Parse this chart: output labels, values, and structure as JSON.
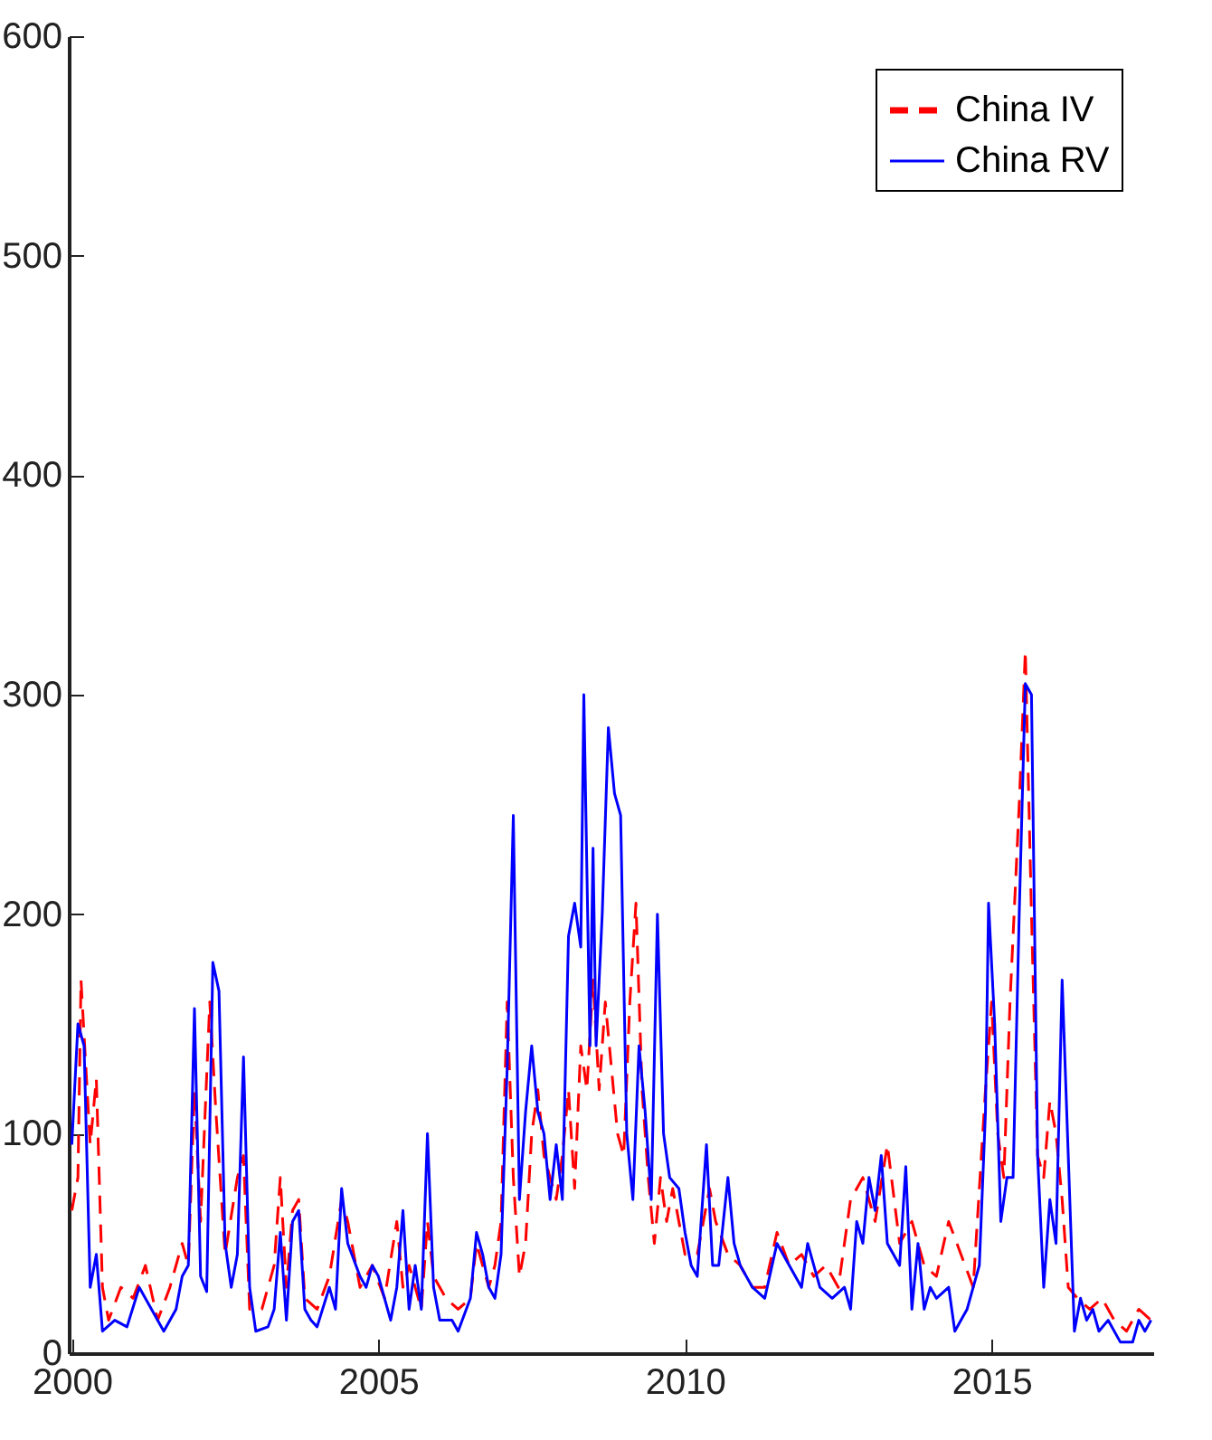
{
  "chart_data": {
    "type": "line",
    "xlim": [
      1999.95,
      2017.65
    ],
    "xticks": [
      2000,
      2005,
      2010,
      2015
    ],
    "ylim": [
      0,
      600
    ],
    "yticks": [
      0,
      100,
      200,
      300,
      400,
      500,
      600
    ],
    "grid": false,
    "legend": "top right",
    "series": [
      {
        "name": "China IV",
        "color": "#ff0000",
        "line_style": "dashed",
        "x": [
          2000.0,
          2000.1,
          2000.15,
          2000.25,
          2000.3,
          2000.4,
          2000.5,
          2000.6,
          2000.8,
          2001.0,
          2001.2,
          2001.4,
          2001.6,
          2001.8,
          2001.9,
          2002.0,
          2002.1,
          2002.25,
          2002.35,
          2002.5,
          2002.7,
          2002.8,
          2002.9,
          2003.1,
          2003.3,
          2003.4,
          2003.5,
          2003.6,
          2003.7,
          2003.8,
          2004.0,
          2004.2,
          2004.4,
          2004.5,
          2004.7,
          2004.9,
          2005.1,
          2005.3,
          2005.4,
          2005.5,
          2005.7,
          2005.8,
          2005.9,
          2006.1,
          2006.3,
          2006.5,
          2006.6,
          2006.8,
          2006.9,
          2007.0,
          2007.1,
          2007.2,
          2007.3,
          2007.4,
          2007.5,
          2007.6,
          2007.7,
          2007.8,
          2007.9,
          2008.0,
          2008.1,
          2008.2,
          2008.3,
          2008.4,
          2008.5,
          2008.6,
          2008.7,
          2008.8,
          2008.9,
          2009.0,
          2009.1,
          2009.2,
          2009.3,
          2009.4,
          2009.5,
          2009.6,
          2009.7,
          2009.8,
          2009.9,
          2010.0,
          2010.2,
          2010.4,
          2010.5,
          2010.7,
          2010.9,
          2011.1,
          2011.3,
          2011.5,
          2011.7,
          2011.9,
          2012.1,
          2012.3,
          2012.5,
          2012.7,
          2012.9,
          2013.1,
          2013.3,
          2013.5,
          2013.7,
          2013.9,
          2014.1,
          2014.3,
          2014.5,
          2014.7,
          2014.9,
          2015.0,
          2015.1,
          2015.2,
          2015.3,
          2015.45,
          2015.55,
          2015.65,
          2015.75,
          2015.85,
          2015.95,
          2016.05,
          2016.15,
          2016.25,
          2016.4,
          2016.6,
          2016.8,
          2017.0,
          2017.2,
          2017.4,
          2017.6
        ],
        "values": [
          65,
          80,
          170,
          120,
          95,
          125,
          30,
          15,
          30,
          25,
          40,
          15,
          30,
          50,
          40,
          120,
          60,
          160,
          110,
          45,
          80,
          90,
          20,
          20,
          40,
          80,
          30,
          65,
          70,
          25,
          20,
          35,
          70,
          60,
          30,
          40,
          25,
          60,
          30,
          40,
          20,
          60,
          35,
          25,
          20,
          25,
          50,
          30,
          40,
          60,
          160,
          80,
          35,
          50,
          100,
          120,
          90,
          80,
          70,
          90,
          120,
          75,
          140,
          120,
          170,
          120,
          160,
          130,
          100,
          90,
          160,
          205,
          120,
          80,
          50,
          80,
          60,
          75,
          60,
          45,
          45,
          75,
          60,
          45,
          40,
          30,
          30,
          55,
          40,
          45,
          35,
          40,
          30,
          70,
          80,
          60,
          95,
          50,
          60,
          40,
          35,
          60,
          45,
          30,
          120,
          160,
          100,
          80,
          160,
          250,
          320,
          200,
          90,
          80,
          115,
          100,
          70,
          30,
          25,
          20,
          25,
          15,
          10,
          20,
          15
        ]
      },
      {
        "name": "China RV",
        "color": "#0000ff",
        "line_style": "solid",
        "x": [
          2000.0,
          2000.1,
          2000.2,
          2000.3,
          2000.4,
          2000.5,
          2000.7,
          2000.9,
          2001.1,
          2001.3,
          2001.5,
          2001.7,
          2001.8,
          2001.9,
          2002.0,
          2002.1,
          2002.2,
          2002.3,
          2002.4,
          2002.5,
          2002.6,
          2002.7,
          2002.8,
          2002.9,
          2003.0,
          2003.2,
          2003.3,
          2003.4,
          2003.5,
          2003.6,
          2003.7,
          2003.8,
          2003.9,
          2004.0,
          2004.2,
          2004.3,
          2004.4,
          2004.5,
          2004.7,
          2004.8,
          2004.9,
          2005.0,
          2005.2,
          2005.3,
          2005.4,
          2005.5,
          2005.6,
          2005.7,
          2005.8,
          2005.9,
          2006.0,
          2006.2,
          2006.3,
          2006.5,
          2006.6,
          2006.7,
          2006.8,
          2006.9,
          2007.0,
          2007.1,
          2007.2,
          2007.3,
          2007.4,
          2007.5,
          2007.6,
          2007.7,
          2007.8,
          2007.9,
          2008.0,
          2008.1,
          2008.2,
          2008.3,
          2008.35,
          2008.45,
          2008.5,
          2008.55,
          2008.65,
          2008.75,
          2008.85,
          2008.95,
          2009.05,
          2009.15,
          2009.25,
          2009.35,
          2009.45,
          2009.55,
          2009.65,
          2009.75,
          2009.9,
          2010.0,
          2010.1,
          2010.2,
          2010.35,
          2010.45,
          2010.55,
          2010.7,
          2010.8,
          2010.9,
          2011.1,
          2011.3,
          2011.5,
          2011.7,
          2011.9,
          2012.0,
          2012.2,
          2012.4,
          2012.6,
          2012.7,
          2012.8,
          2012.9,
          2013.0,
          2013.1,
          2013.2,
          2013.3,
          2013.5,
          2013.6,
          2013.7,
          2013.8,
          2013.9,
          2014.0,
          2014.1,
          2014.3,
          2014.4,
          2014.5,
          2014.6,
          2014.8,
          2014.9,
          2014.95,
          2015.05,
          2015.15,
          2015.25,
          2015.35,
          2015.45,
          2015.55,
          2015.65,
          2015.75,
          2015.85,
          2015.95,
          2016.05,
          2016.15,
          2016.25,
          2016.35,
          2016.45,
          2016.55,
          2016.65,
          2016.75,
          2016.9,
          2017.1,
          2017.3,
          2017.4,
          2017.5,
          2017.6
        ],
        "values": [
          95,
          150,
          140,
          30,
          45,
          10,
          15,
          12,
          30,
          20,
          10,
          20,
          35,
          40,
          157,
          35,
          28,
          178,
          165,
          50,
          30,
          45,
          135,
          30,
          10,
          12,
          20,
          55,
          15,
          60,
          65,
          20,
          15,
          12,
          30,
          20,
          75,
          50,
          35,
          30,
          40,
          35,
          15,
          30,
          65,
          20,
          40,
          20,
          100,
          30,
          15,
          15,
          10,
          25,
          55,
          45,
          30,
          25,
          45,
          130,
          245,
          70,
          110,
          140,
          110,
          100,
          70,
          95,
          70,
          190,
          205,
          185,
          300,
          140,
          230,
          140,
          200,
          285,
          255,
          245,
          100,
          70,
          140,
          110,
          70,
          200,
          100,
          80,
          75,
          55,
          40,
          35,
          95,
          40,
          40,
          80,
          50,
          40,
          30,
          25,
          50,
          40,
          30,
          50,
          30,
          25,
          30,
          20,
          60,
          50,
          80,
          65,
          90,
          50,
          40,
          85,
          20,
          50,
          20,
          30,
          25,
          30,
          10,
          15,
          20,
          40,
          110,
          205,
          150,
          60,
          80,
          80,
          200,
          305,
          300,
          90,
          30,
          70,
          50,
          170,
          90,
          10,
          25,
          15,
          20,
          10,
          15,
          5,
          5,
          15,
          10,
          15
        ]
      }
    ]
  }
}
